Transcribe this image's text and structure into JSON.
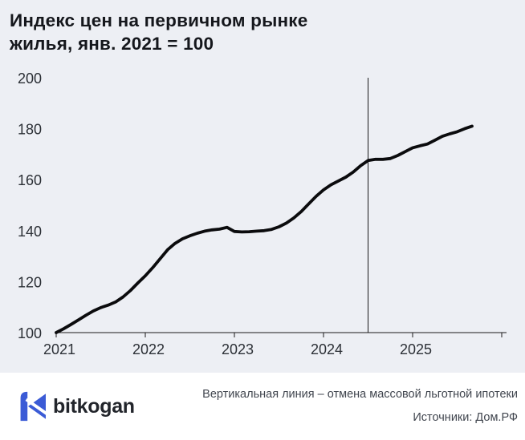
{
  "header": {
    "title": "Индекс цен на первичном рынке жилья, янв. 2021 = 100"
  },
  "chart_data": {
    "type": "line",
    "title": "Индекс цен на первичном рынке жилья, янв. 2021 = 100",
    "x_start": "янв. 2021",
    "frequency": "monthly",
    "x_tick_labels": [
      "2021",
      "2022",
      "2023",
      "2024",
      "2025"
    ],
    "y_ticks": [
      100,
      120,
      140,
      160,
      180,
      200
    ],
    "ylim": [
      100,
      200
    ],
    "grid": false,
    "legend": "none",
    "series": [
      {
        "name": "Индекс цен на первичном рынке жилья",
        "color": "#0b0b0d",
        "values": [
          100,
          101.5,
          103.2,
          105,
          106.8,
          108.5,
          109.8,
          110.8,
          112,
          114,
          116.5,
          119.5,
          122.3,
          125.5,
          129,
          132.5,
          135,
          136.8,
          138,
          139,
          139.8,
          140.3,
          140.6,
          141.3,
          139.7,
          139.5,
          139.6,
          139.8,
          140,
          140.5,
          141.5,
          143,
          145,
          147.5,
          150.5,
          153.5,
          156,
          158,
          159.5,
          161,
          163,
          165.5,
          167.5,
          168,
          168,
          168.3,
          169.5,
          171,
          172.5,
          173.3,
          174,
          175.5,
          177,
          178,
          178.8,
          180,
          181
        ]
      }
    ],
    "event_line": {
      "month_index": 42,
      "meaning": "отмена массовой льготной ипотеки"
    }
  },
  "footer": {
    "logo_text": "bitkogan",
    "note": "Вертикальная линия – отмена массовой льготной ипотеки",
    "source": "Источники: Дом.РФ"
  },
  "colors": {
    "background": "#edeff4",
    "footer_background": "#ffffff",
    "title": "#15171c",
    "tick_label": "#2c3036",
    "axis": "#1a1a1a",
    "line": "#0b0b0d",
    "note": "#41464f",
    "logo_blue": "#3b5bd6",
    "logo_text": "#22252b"
  }
}
